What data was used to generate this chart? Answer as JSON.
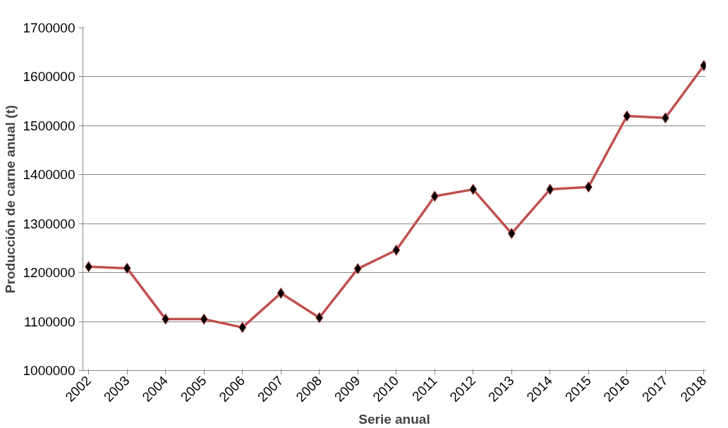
{
  "chart_data": {
    "type": "line",
    "xlabel": "Serie anual",
    "ylabel": "Producción de carne anual (t)",
    "categories": [
      "2002",
      "2003",
      "2004",
      "2005",
      "2006",
      "2007",
      "2008",
      "2009",
      "2010",
      "2011",
      "2012",
      "2013",
      "2014",
      "2015",
      "2016",
      "2017",
      "2018"
    ],
    "series": [
      {
        "color": "#c0504d",
        "values": [
          1212000,
          1209000,
          1105000,
          1105000,
          1088000,
          1158000,
          1108000,
          1208000,
          1246000,
          1356000,
          1370000,
          1280000,
          1370000,
          1375000,
          1520000,
          1516000,
          1623000
        ]
      }
    ],
    "ylim": [
      1000000,
      1700000
    ],
    "yticks": [
      1000000,
      1100000,
      1200000,
      1300000,
      1400000,
      1500000,
      1600000,
      1700000
    ],
    "grid": "y",
    "marker": "diamond",
    "line_style": "solid"
  }
}
